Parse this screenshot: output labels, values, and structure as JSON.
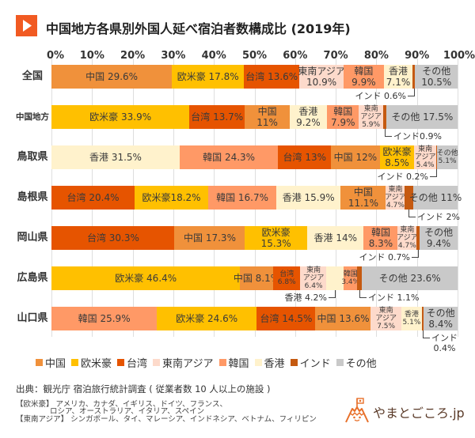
{
  "title": {
    "icon": "play-triangle-icon",
    "text": "中国地方各県別外国人延べ宿泊者数構成比 (2019年)"
  },
  "chart_data": {
    "type": "bar",
    "orientation": "horizontal",
    "stacked": true,
    "normalized_percent": true,
    "title": "中国地方各県別外国人延べ宿泊者数構成比 (2019年)",
    "xlabel": "",
    "ylabel": "",
    "xlim": [
      0,
      100
    ],
    "x_ticks": [
      "0%",
      "10%",
      "20%",
      "30%",
      "40%",
      "50%",
      "60%",
      "70%",
      "80%",
      "90%",
      "100%"
    ],
    "grid": true,
    "legend_position": "bottom",
    "categories": [
      "全国",
      "中国地方",
      "鳥取県",
      "島根県",
      "岡山県",
      "広島県",
      "山口県"
    ],
    "series": [
      {
        "name": "中国",
        "color": "#F0913B",
        "values": [
          29.6,
          11,
          12,
          11.1,
          17.3,
          8.1,
          13.6
        ]
      },
      {
        "name": "欧米豪",
        "color": "#FFC000",
        "values": [
          17.8,
          33.9,
          8.5,
          18.2,
          15.3,
          46.4,
          24.6
        ]
      },
      {
        "name": "台湾",
        "color": "#E65400",
        "values": [
          13.6,
          13.7,
          13,
          20.4,
          30.3,
          6.8,
          14.5
        ]
      },
      {
        "name": "東南アジア",
        "color": "#FDDACB",
        "values": [
          10.9,
          5.9,
          5.4,
          4.7,
          4.7,
          6.4,
          7.5
        ]
      },
      {
        "name": "韓国",
        "color": "#FF9966",
        "values": [
          9.9,
          7.9,
          24.3,
          16.7,
          8.3,
          3.4,
          25.9
        ]
      },
      {
        "name": "香港",
        "color": "#FFF2CC",
        "values": [
          7.1,
          9.2,
          31.5,
          15.9,
          14,
          4.2,
          5.1
        ]
      },
      {
        "name": "インド",
        "color": "#C55A11",
        "values": [
          0.6,
          0.9,
          0.2,
          2,
          0.7,
          1.1,
          0.4
        ]
      },
      {
        "name": "その他",
        "color": "#C9C9C9",
        "values": [
          10.5,
          17.5,
          5.1,
          11,
          9.4,
          23.6,
          8.4
        ]
      }
    ],
    "rows": [
      {
        "category": "全国",
        "segments": [
          {
            "series": "中国",
            "value": 29.6,
            "label": [
              "中国 29.6%"
            ]
          },
          {
            "series": "欧米豪",
            "value": 17.8,
            "label": [
              "欧米豪 17.8%"
            ]
          },
          {
            "series": "台湾",
            "value": 13.6,
            "label": [
              "台湾 13.6%"
            ]
          },
          {
            "series": "東南アジア",
            "value": 10.9,
            "label": [
              "東南アジア",
              "10.9%"
            ]
          },
          {
            "series": "韓国",
            "value": 9.9,
            "label": [
              "韓国",
              "9.9%"
            ]
          },
          {
            "series": "香港",
            "value": 7.1,
            "label": [
              "香港",
              "7.1%"
            ]
          },
          {
            "series": "インド",
            "value": 0.6,
            "label": []
          },
          {
            "series": "その他",
            "value": 10.5,
            "label": [
              "その他",
              "10.5%"
            ]
          }
        ],
        "callouts": [
          {
            "series": "インド",
            "text": [
              "インド 0.6%"
            ]
          }
        ]
      },
      {
        "category": "中国地方",
        "segments": [
          {
            "series": "欧米豪",
            "value": 33.9,
            "label": [
              "欧米豪 33.9%"
            ]
          },
          {
            "series": "台湾",
            "value": 13.7,
            "label": [
              "台湾 13.7%"
            ]
          },
          {
            "series": "中国",
            "value": 11,
            "label": [
              "中国",
              "11%"
            ]
          },
          {
            "series": "香港",
            "value": 9.2,
            "label": [
              "香港",
              "9.2%"
            ]
          },
          {
            "series": "韓国",
            "value": 7.9,
            "label": [
              "韓国",
              "7.9%"
            ]
          },
          {
            "series": "東南アジア",
            "value": 5.9,
            "label": [
              "東南",
              "アジア",
              "5.9%"
            ]
          },
          {
            "series": "インド",
            "value": 0.9,
            "label": []
          },
          {
            "series": "その他",
            "value": 17.5,
            "label": [
              "その他 17.5%"
            ]
          }
        ],
        "callouts": [
          {
            "series": "インド",
            "text": [
              "インド0.9%"
            ]
          }
        ]
      },
      {
        "category": "鳥取県",
        "segments": [
          {
            "series": "香港",
            "value": 31.5,
            "label": [
              "香港 31.5%"
            ]
          },
          {
            "series": "韓国",
            "value": 24.3,
            "label": [
              "韓国 24.3%"
            ]
          },
          {
            "series": "台湾",
            "value": 13,
            "label": [
              "台湾 13%"
            ]
          },
          {
            "series": "中国",
            "value": 12,
            "label": [
              "中国 12%"
            ]
          },
          {
            "series": "欧米豪",
            "value": 8.5,
            "label": [
              "欧米豪",
              "8.5%"
            ]
          },
          {
            "series": "東南アジア",
            "value": 5.4,
            "label": [
              "東南",
              "アジア",
              "5.4%"
            ]
          },
          {
            "series": "インド",
            "value": 0.2,
            "label": []
          },
          {
            "series": "その他",
            "value": 5.1,
            "label": [
              "その他",
              "5.1%"
            ]
          }
        ],
        "callouts": [
          {
            "series": "インド",
            "text": [
              "インド 0.2%"
            ]
          }
        ]
      },
      {
        "category": "島根県",
        "segments": [
          {
            "series": "台湾",
            "value": 20.4,
            "label": [
              "台湾 20.4%"
            ]
          },
          {
            "series": "欧米豪",
            "value": 18.2,
            "label": [
              "欧米豪18.2%"
            ]
          },
          {
            "series": "韓国",
            "value": 16.7,
            "label": [
              "韓国 16.7%"
            ]
          },
          {
            "series": "香港",
            "value": 15.9,
            "label": [
              "香港 15.9%"
            ]
          },
          {
            "series": "中国",
            "value": 11.1,
            "label": [
              "中国",
              "11.1%"
            ]
          },
          {
            "series": "東南アジア",
            "value": 4.7,
            "label": [
              "東南",
              "アジア",
              "4.7%"
            ]
          },
          {
            "series": "インド",
            "value": 2,
            "label": []
          },
          {
            "series": "その他",
            "value": 11,
            "label": [
              "その他 11%"
            ]
          }
        ],
        "callouts": [
          {
            "series": "インド",
            "text": [
              "インド 2%"
            ]
          }
        ]
      },
      {
        "category": "岡山県",
        "segments": [
          {
            "series": "台湾",
            "value": 30.3,
            "label": [
              "台湾 30.3%"
            ]
          },
          {
            "series": "中国",
            "value": 17.3,
            "label": [
              "中国 17.3%"
            ]
          },
          {
            "series": "欧米豪",
            "value": 15.3,
            "label": [
              "欧米豪",
              "15.3%"
            ]
          },
          {
            "series": "香港",
            "value": 14,
            "label": [
              "香港 14%"
            ]
          },
          {
            "series": "韓国",
            "value": 8.3,
            "label": [
              "韓国",
              "8.3%"
            ]
          },
          {
            "series": "東南アジア",
            "value": 4.7,
            "label": [
              "東南",
              "アジア",
              "4.7%"
            ]
          },
          {
            "series": "インド",
            "value": 0.7,
            "label": []
          },
          {
            "series": "その他",
            "value": 9.4,
            "label": [
              "その他",
              "9.4%"
            ]
          }
        ],
        "callouts": [
          {
            "series": "インド",
            "text": [
              "インド 0.7%"
            ]
          }
        ]
      },
      {
        "category": "広島県",
        "segments": [
          {
            "series": "欧米豪",
            "value": 46.4,
            "label": [
              "欧米豪 46.4%"
            ]
          },
          {
            "series": "中国",
            "value": 8.1,
            "label": [
              "中国 8.1%"
            ]
          },
          {
            "series": "台湾",
            "value": 6.8,
            "label": [
              "台湾",
              "6.8%"
            ]
          },
          {
            "series": "東南アジア",
            "value": 6.4,
            "label": [
              "東南",
              "アジア",
              "6.4%"
            ]
          },
          {
            "series": "香港",
            "value": 4.2,
            "label": []
          },
          {
            "series": "韓国",
            "value": 3.4,
            "label": [
              "韓国",
              "3.4%"
            ]
          },
          {
            "series": "インド",
            "value": 1.1,
            "label": []
          },
          {
            "series": "その他",
            "value": 23.6,
            "label": [
              "その他 23.6%"
            ]
          }
        ],
        "callouts": [
          {
            "series": "香港",
            "text": [
              "香港 4.2%"
            ]
          },
          {
            "series": "インド",
            "text": [
              "インド 1.1%"
            ]
          }
        ]
      },
      {
        "category": "山口県",
        "segments": [
          {
            "series": "韓国",
            "value": 25.9,
            "label": [
              "韓国 25.9%"
            ]
          },
          {
            "series": "欧米豪",
            "value": 24.6,
            "label": [
              "欧米豪 24.6%"
            ]
          },
          {
            "series": "台湾",
            "value": 14.5,
            "label": [
              "台湾 14.5%"
            ]
          },
          {
            "series": "中国",
            "value": 13.6,
            "label": [
              "中国 13.6%"
            ]
          },
          {
            "series": "東南アジア",
            "value": 7.5,
            "label": [
              "東南",
              "アジア",
              "7.5%"
            ]
          },
          {
            "series": "香港",
            "value": 5.1,
            "label": [
              "香港",
              "5.1%"
            ]
          },
          {
            "series": "インド",
            "value": 0.4,
            "label": []
          },
          {
            "series": "その他",
            "value": 8.4,
            "label": [
              "その他",
              "8.4%"
            ]
          }
        ],
        "callouts": [
          {
            "series": "インド",
            "text": [
              "インド",
              "0.4%"
            ]
          }
        ]
      }
    ]
  },
  "source": {
    "text": "出典：観光庁 宿泊旅行統計調査 ( 従業者数 10 人以上の施設 )"
  },
  "notes": [
    {
      "tag": "【欧米豪】",
      "lines": [
        "アメリカ、カナダ、イギリス、ドイツ、フランス、",
        "ロシア、オーストラリア、イタリア、スペイン"
      ]
    },
    {
      "tag": "【東南アジア】",
      "lines": [
        "シンガポール、タイ、マレーシア、インドネシア、ベトナム、フィリピン"
      ]
    }
  ],
  "logo": {
    "icon": "mountain-flag-icon",
    "text": "やまとごころ.jp",
    "color": "#E8702A"
  }
}
